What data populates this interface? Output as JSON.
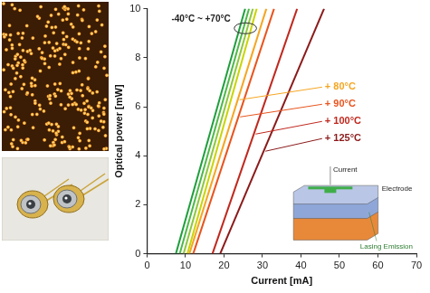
{
  "chart_data": {
    "type": "line",
    "x_label": "Current [mA]",
    "y_label": "Optical power [mW]",
    "xlim": [
      0,
      70
    ],
    "xticks": [
      0,
      10,
      20,
      30,
      40,
      50,
      60,
      70
    ],
    "ylim": [
      0,
      10
    ],
    "yticks": [
      0,
      2,
      4,
      6,
      8,
      10
    ],
    "grid": false,
    "annotations": [
      "-40°C ~ +70°C"
    ],
    "inset_labels": [
      "Current",
      "Electrode",
      "Lasing Emission"
    ],
    "series": [
      {
        "color": "#1e9e3c",
        "x": [
          7.5,
          25.5
        ],
        "values": [
          0,
          10
        ]
      },
      {
        "color": "#4cb848",
        "x": [
          8.5,
          26.5
        ],
        "values": [
          0,
          10
        ]
      },
      {
        "color": "#8cc63f",
        "x": [
          9.5,
          27.5
        ],
        "values": [
          0,
          10
        ]
      },
      {
        "color": "#c8d400",
        "x": [
          10.5,
          28.5
        ],
        "values": [
          0,
          10
        ]
      },
      {
        "name": "+ 80°C",
        "color": "#f5a623",
        "x": [
          11,
          31
        ],
        "values": [
          0,
          10
        ]
      },
      {
        "name": "+ 90°C",
        "color": "#e8541e",
        "x": [
          12,
          33
        ],
        "values": [
          0,
          10
        ]
      },
      {
        "name": "+ 100°C",
        "color": "#c0281e",
        "x": [
          17,
          39
        ],
        "values": [
          0,
          10
        ]
      },
      {
        "name": "+ 125°C",
        "color": "#8b1a1a",
        "x": [
          19,
          46
        ],
        "values": [
          0,
          10
        ]
      }
    ]
  }
}
